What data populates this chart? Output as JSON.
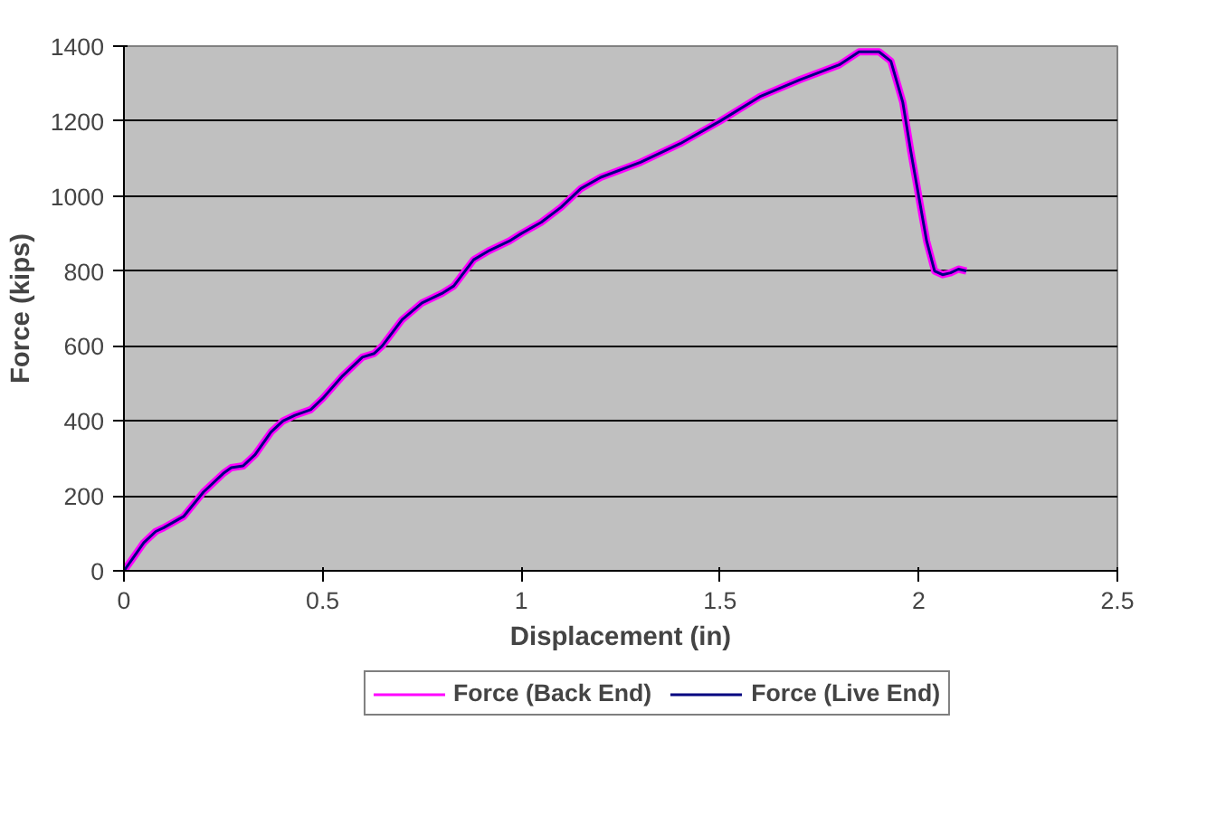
{
  "chart_data": {
    "type": "line",
    "xlabel": "Displacement (in)",
    "ylabel": "Force (kips)",
    "x": [
      0,
      0.02,
      0.05,
      0.08,
      0.1,
      0.15,
      0.2,
      0.25,
      0.27,
      0.3,
      0.33,
      0.37,
      0.4,
      0.43,
      0.47,
      0.5,
      0.55,
      0.6,
      0.63,
      0.65,
      0.7,
      0.75,
      0.8,
      0.83,
      0.88,
      0.92,
      0.97,
      1.0,
      1.05,
      1.1,
      1.15,
      1.2,
      1.3,
      1.4,
      1.5,
      1.6,
      1.7,
      1.8,
      1.85,
      1.9,
      1.93,
      1.96,
      1.98,
      2.0,
      2.02,
      2.04,
      2.06,
      2.08,
      2.1,
      2.12
    ],
    "series": [
      {
        "name": "Force (Back End)",
        "color": "#ff00ff",
        "values": [
          0,
          30,
          75,
          105,
          115,
          145,
          210,
          260,
          275,
          280,
          310,
          370,
          400,
          415,
          430,
          460,
          520,
          570,
          580,
          600,
          670,
          715,
          740,
          760,
          830,
          855,
          880,
          900,
          930,
          970,
          1020,
          1050,
          1090,
          1140,
          1200,
          1265,
          1310,
          1350,
          1385,
          1385,
          1360,
          1250,
          1120,
          1000,
          880,
          800,
          790,
          795,
          805,
          800
        ]
      },
      {
        "name": "Force (Live End)",
        "color": "#000080",
        "values": [
          0,
          30,
          75,
          105,
          115,
          145,
          210,
          260,
          275,
          280,
          310,
          370,
          400,
          415,
          430,
          460,
          520,
          570,
          580,
          600,
          670,
          715,
          740,
          760,
          830,
          855,
          880,
          900,
          930,
          970,
          1020,
          1050,
          1090,
          1140,
          1200,
          1265,
          1310,
          1350,
          1385,
          1385,
          1360,
          1250,
          1120,
          1000,
          880,
          800,
          790,
          795,
          805,
          800
        ]
      }
    ],
    "xlim": [
      0,
      2.5
    ],
    "xticks": [
      0,
      0.5,
      1,
      1.5,
      2,
      2.5
    ],
    "ylim": [
      0,
      1400
    ],
    "yticks": [
      0,
      200,
      400,
      600,
      800,
      1000,
      1200,
      1400
    ],
    "grid": "y",
    "legend": "bottom",
    "marker": "none",
    "line_style": "solid"
  }
}
